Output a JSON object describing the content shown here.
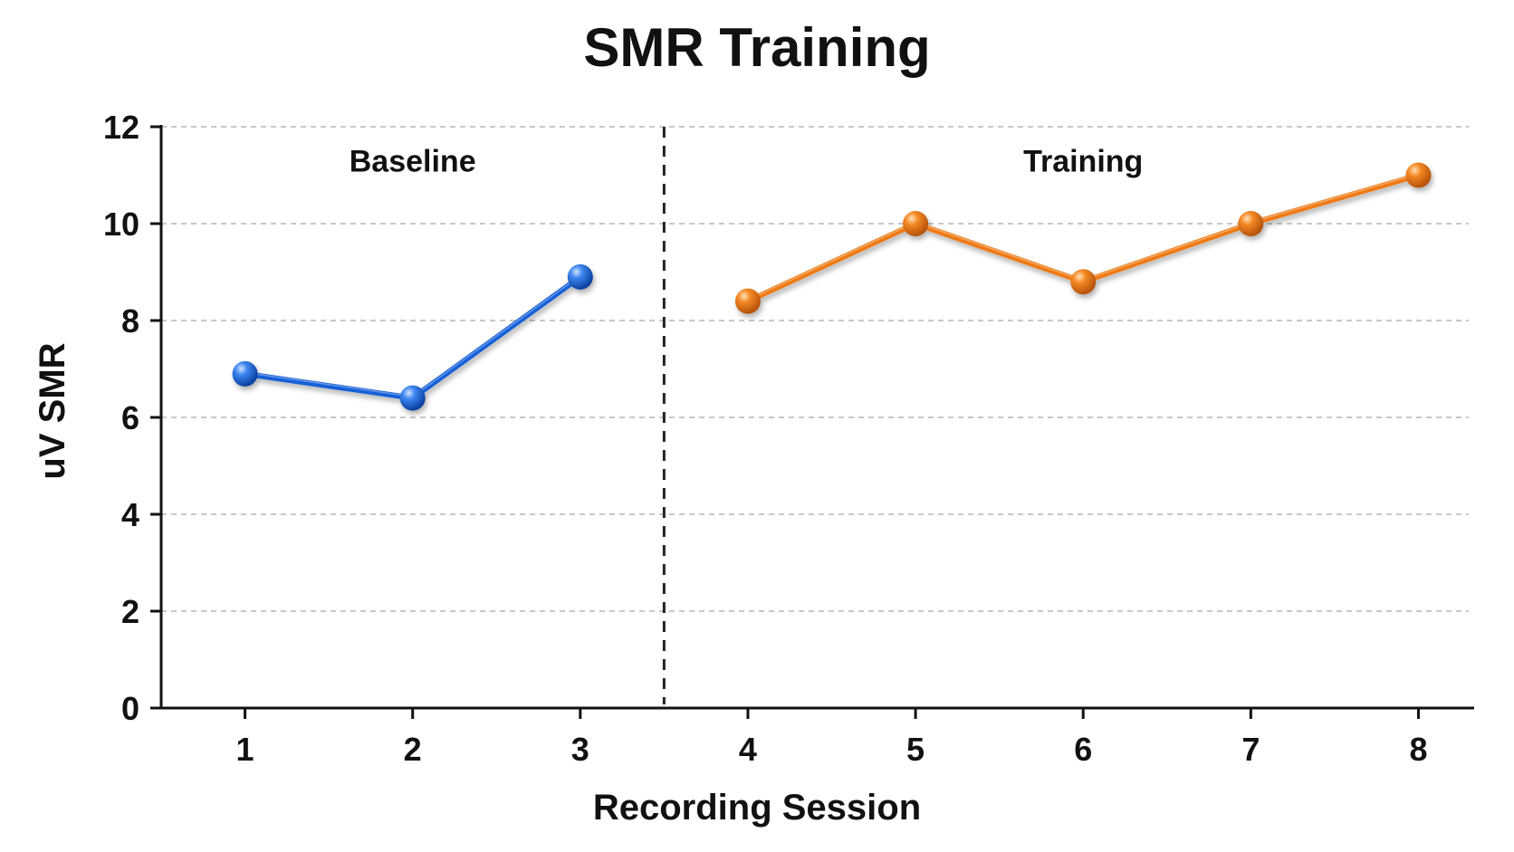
{
  "chart_data": {
    "type": "line",
    "title": "SMR Training",
    "xlabel": "Recording Session",
    "ylabel": "uV SMR",
    "xlim": [
      0.5,
      8.3
    ],
    "ylim": [
      0,
      12
    ],
    "x_ticks": [
      1,
      2,
      3,
      4,
      5,
      6,
      7,
      8
    ],
    "y_ticks": [
      0,
      2,
      4,
      6,
      8,
      10,
      12
    ],
    "grid": true,
    "phase_divider_x": 3.5,
    "phase_labels": [
      {
        "text": "Baseline",
        "x": 2.0,
        "y": 11.3
      },
      {
        "text": "Training",
        "x": 6.0,
        "y": 11.3
      }
    ],
    "series": [
      {
        "color": "#1560d8",
        "points": [
          {
            "x": 1,
            "y": 6.9
          },
          {
            "x": 2,
            "y": 6.4
          },
          {
            "x": 3,
            "y": 8.9
          }
        ]
      },
      {
        "color": "#ee7a12",
        "points": [
          {
            "x": 4,
            "y": 8.4
          },
          {
            "x": 5,
            "y": 10.0
          },
          {
            "x": 6,
            "y": 8.8
          },
          {
            "x": 7,
            "y": 10.0
          },
          {
            "x": 8,
            "y": 11.0
          }
        ]
      }
    ]
  }
}
